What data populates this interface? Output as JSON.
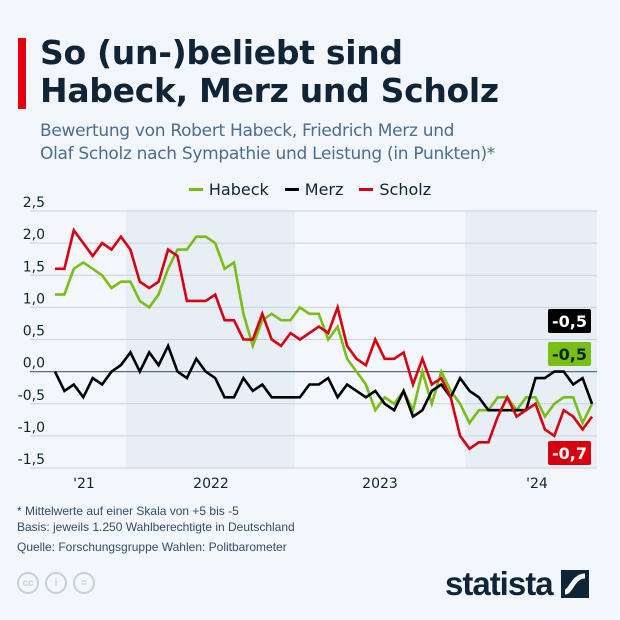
{
  "title": [
    "So (un-)beliebt sind",
    "Habeck, Merz und Scholz"
  ],
  "subtitle": [
    "Bewertung von Robert Habeck, Friedrich Merz und",
    "Olaf Scholz nach Sympathie und Leistung (in Punkten)*"
  ],
  "notes": [
    "* Mittelwerte auf einer Skala von +5 bis -5",
    "Basis: jeweils 1.250 Wahlberechtigte in Deutschland"
  ],
  "source": "Quelle: Forschungsgruppe Wahlen: Politbarometer",
  "brand": "statista",
  "license_icons": [
    "cc-icon",
    "by-icon",
    "nd-icon"
  ],
  "chart_data": {
    "type": "line",
    "ylim": [
      -1.5,
      2.5
    ],
    "yticks": [
      "2,5",
      "2,0",
      "1,5",
      "1,0",
      "0,5",
      "0,0",
      "-0,5",
      "-1,0",
      "-1,5"
    ],
    "ytick_values": [
      2.5,
      2.0,
      1.5,
      1.0,
      0.5,
      0.0,
      -0.5,
      -1.0,
      -1.5
    ],
    "xtick_labels": [
      "'21",
      "2022",
      "2023",
      "'24"
    ],
    "grid": true,
    "legend": "top",
    "series": [
      {
        "name": "Habeck",
        "color": "#78be14",
        "end_label": "-0,5",
        "values": [
          1.2,
          1.2,
          1.6,
          1.7,
          1.6,
          1.5,
          1.3,
          1.4,
          1.4,
          1.1,
          1.0,
          1.2,
          1.6,
          1.9,
          1.9,
          2.1,
          2.1,
          2.0,
          1.6,
          1.7,
          0.9,
          0.4,
          0.8,
          0.9,
          0.8,
          0.8,
          1.0,
          0.9,
          0.9,
          0.5,
          0.7,
          0.2,
          0.0,
          -0.2,
          -0.6,
          -0.4,
          -0.5,
          -0.3,
          -0.6,
          0.0,
          -0.5,
          0.0,
          -0.3,
          -0.5,
          -0.8,
          -0.6,
          -0.6,
          -0.4,
          -0.4,
          -0.6,
          -0.4,
          -0.4,
          -0.7,
          -0.5,
          -0.4,
          -0.4,
          -0.8,
          -0.5
        ]
      },
      {
        "name": "Merz",
        "color": "#000000",
        "end_label": "-0,5",
        "values": [
          0,
          -0.3,
          -0.2,
          -0.4,
          -0.1,
          -0.2,
          0,
          0.1,
          0.3,
          0,
          0.3,
          0.1,
          0.4,
          0,
          -0.1,
          0.2,
          0,
          -0.1,
          -0.4,
          -0.4,
          -0.1,
          -0.3,
          -0.2,
          -0.4,
          -0.4,
          -0.4,
          -0.4,
          -0.2,
          -0.2,
          -0.1,
          -0.4,
          -0.2,
          -0.3,
          -0.4,
          -0.3,
          -0.5,
          -0.6,
          -0.3,
          -0.7,
          -0.6,
          -0.3,
          -0.2,
          -0.4,
          -0.1,
          -0.3,
          -0.4,
          -0.6,
          -0.6,
          -0.6,
          -0.6,
          -0.6,
          -0.1,
          -0.1,
          0.0,
          0.0,
          -0.2,
          -0.1,
          -0.5
        ]
      },
      {
        "name": "Scholz",
        "color": "#d7000f",
        "end_label": "-0,7",
        "values": [
          1.6,
          1.6,
          2.2,
          2.0,
          1.8,
          2.0,
          1.9,
          2.1,
          1.9,
          1.4,
          1.3,
          1.4,
          1.9,
          1.8,
          1.1,
          1.1,
          1.1,
          1.2,
          0.8,
          0.8,
          0.5,
          0.5,
          0.9,
          0.5,
          0.4,
          0.6,
          0.5,
          0.6,
          0.7,
          0.6,
          1.0,
          0.4,
          0.2,
          0.1,
          0.5,
          0.2,
          0.2,
          0.3,
          -0.2,
          0.2,
          -0.2,
          -0.1,
          -0.4,
          -1.0,
          -1.2,
          -1.1,
          -1.1,
          -0.7,
          -0.4,
          -0.7,
          -0.6,
          -0.5,
          -0.9,
          -1.0,
          -0.6,
          -0.7,
          -0.9,
          -0.7
        ]
      }
    ]
  }
}
